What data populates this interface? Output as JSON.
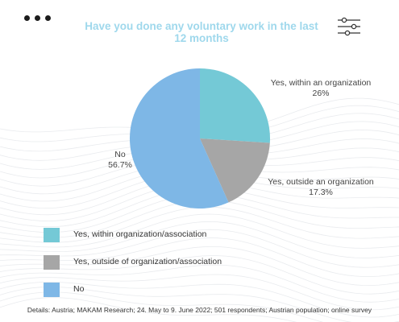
{
  "chart_data": {
    "type": "pie",
    "title": "Have you done any voluntary work in the last 12 months",
    "slices": [
      {
        "label": "Yes, within an organization",
        "value": 26,
        "value_label": "26%",
        "color": "#74c9d6"
      },
      {
        "label": "Yes, outside an organization",
        "value": 17.3,
        "value_label": "17.3%",
        "color": "#a6a6a6"
      },
      {
        "label": "No",
        "value": 56.7,
        "value_label": "56.7%",
        "color": "#7eb7e6"
      }
    ],
    "legend": [
      {
        "label": "Yes, within organization/association",
        "color": "#74c9d6"
      },
      {
        "label": "Yes, outside of organization/association",
        "color": "#a6a6a6"
      },
      {
        "label": "No",
        "color": "#7eb7e6"
      }
    ],
    "legend_position": "bottom-left",
    "start_angle_deg": 0,
    "direction": "clockwise"
  },
  "details": "Details: Austria; MAKAM Research; 24. May to 9. June 2022; 501 respondents; Austrian population; online survey",
  "icons": {
    "menu": "more-dots-icon",
    "filter": "sliders-icon"
  }
}
